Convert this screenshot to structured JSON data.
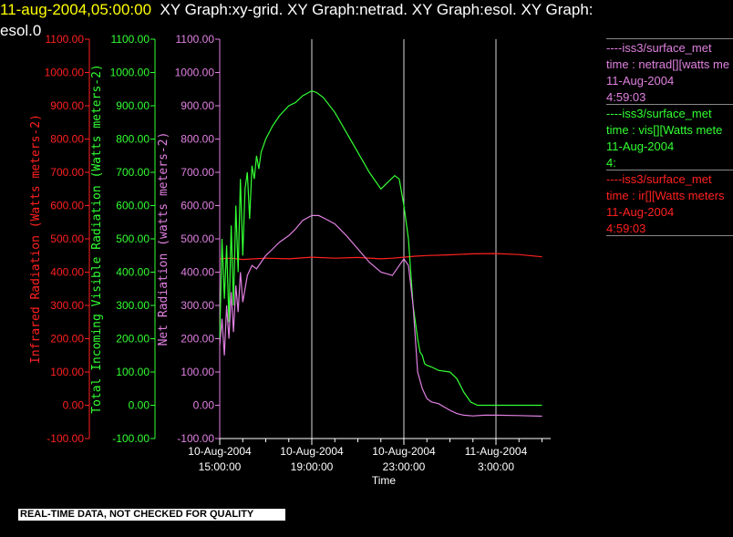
{
  "header": {
    "timestamp": "11-aug-2004,05:00:00",
    "line1_desc": "XY Graph:xy-grid.  XY Graph:netrad.  XY Graph:esol.  XY Graph:",
    "line2_desc": "esol.0"
  },
  "colors": {
    "infrared": "#ff2020",
    "visible": "#33ff33",
    "net": "#e080e0",
    "grid": "#ffffff",
    "axis": "#ffffff"
  },
  "legend": [
    {
      "name": "----iss3/surface_met",
      "label": "time : netrad[][watts me",
      "date": "11-Aug-2004",
      "time": "4:59:03",
      "color": "#e080e0"
    },
    {
      "name": "----iss3/surface_met",
      "label": "time : vis[][Watts mete",
      "date": "11-Aug-2004",
      "time": "4:",
      "color": "#33ff33"
    },
    {
      "name": "----iss3/surface_met",
      "label": "time : ir[][Watts meters",
      "date": "11-Aug-2004",
      "time": "4:59:03",
      "color": "#ff2020"
    }
  ],
  "footer_note": "REAL-TIME DATA, NOT CHECKED FOR QUALITY",
  "chart_data": {
    "type": "line",
    "xlabel": "Time",
    "x_ticks": [
      {
        "hours": 0,
        "line1": "10-Aug-2004",
        "line2": "15:00:00"
      },
      {
        "hours": 4,
        "line1": "10-Aug-2004",
        "line2": "19:00:00"
      },
      {
        "hours": 8,
        "line1": "10-Aug-2004",
        "line2": "23:00:00"
      },
      {
        "hours": 12,
        "line1": "11-Aug-2004",
        "line2": "3:00:00"
      }
    ],
    "xlim_hours": [
      0,
      14.1
    ],
    "grid": true,
    "axes": [
      {
        "id": "ir",
        "label": "Infrared Radiation (Watts meters-2)",
        "color": "#ff2020",
        "ylim": [
          -100,
          1100
        ],
        "ticks": [
          "-100.00",
          "0.00",
          "100.00",
          "200.00",
          "300.00",
          "400.00",
          "500.00",
          "600.00",
          "700.00",
          "800.00",
          "900.00",
          "1000.00",
          "1100.00"
        ]
      },
      {
        "id": "vis",
        "label": "Total Incoming Visible Radiation (Watts meters-2)",
        "color": "#33ff33",
        "ylim": [
          -100,
          1100
        ],
        "ticks": [
          "-100.00",
          "0.00",
          "100.00",
          "200.00",
          "300.00",
          "400.00",
          "500.00",
          "600.00",
          "700.00",
          "800.00",
          "900.00",
          "1000.00",
          "1100.00"
        ]
      },
      {
        "id": "net",
        "label": "Net Radiation (watts meters-2)",
        "color": "#e080e0",
        "ylim": [
          -100,
          1100
        ],
        "ticks": [
          "-100.00",
          "0.00",
          "100.00",
          "200.00",
          "300.00",
          "400.00",
          "500.00",
          "600.00",
          "700.00",
          "800.00",
          "900.00",
          "1000.00",
          "1100.00"
        ]
      }
    ],
    "series": [
      {
        "name": "ir",
        "color": "#ff2020",
        "x": [
          0,
          0.5,
          1,
          1.5,
          2,
          3,
          4,
          5,
          6,
          7,
          7.5,
          8,
          8.5,
          9,
          10,
          11,
          12,
          13,
          14
        ],
        "y": [
          440,
          442,
          438,
          440,
          442,
          440,
          445,
          442,
          444,
          440,
          442,
          445,
          448,
          450,
          452,
          455,
          456,
          453,
          446
        ]
      },
      {
        "name": "vis",
        "color": "#33ff33",
        "x": [
          0,
          0.1,
          0.2,
          0.3,
          0.4,
          0.5,
          0.6,
          0.7,
          0.8,
          0.9,
          1.0,
          1.1,
          1.2,
          1.3,
          1.4,
          1.5,
          1.6,
          1.7,
          1.8,
          2.0,
          2.3,
          2.6,
          3.0,
          3.3,
          3.6,
          4.0,
          4.2,
          4.5,
          5.0,
          5.5,
          6.0,
          6.5,
          7.0,
          7.3,
          7.6,
          7.8,
          8.0,
          8.2,
          8.4,
          8.6,
          8.7,
          8.8,
          8.9,
          9.0,
          9.2,
          9.5,
          10.0,
          10.3,
          10.6,
          10.9,
          11.2,
          11.5,
          12.0,
          13.0,
          14.0
        ],
        "y": [
          200,
          500,
          320,
          480,
          250,
          540,
          300,
          600,
          400,
          680,
          450,
          650,
          700,
          560,
          720,
          680,
          750,
          710,
          760,
          800,
          840,
          870,
          900,
          910,
          930,
          945,
          940,
          925,
          880,
          820,
          760,
          700,
          650,
          670,
          690,
          680,
          600,
          500,
          300,
          200,
          160,
          150,
          125,
          120,
          115,
          105,
          100,
          80,
          40,
          10,
          0,
          0,
          0,
          0,
          0
        ]
      },
      {
        "name": "net",
        "color": "#e080e0",
        "x": [
          0,
          0.1,
          0.2,
          0.3,
          0.4,
          0.5,
          0.6,
          0.7,
          0.8,
          0.9,
          1.0,
          1.2,
          1.4,
          1.6,
          1.8,
          2.0,
          2.3,
          2.6,
          3.0,
          3.3,
          3.6,
          4.0,
          4.3,
          4.6,
          5.0,
          5.5,
          6.0,
          6.5,
          7.0,
          7.5,
          7.8,
          8.0,
          8.2,
          8.4,
          8.6,
          8.8,
          9.0,
          9.2,
          9.5,
          10.0,
          10.3,
          10.6,
          11.0,
          11.5,
          12.0,
          13.0,
          14.0
        ],
        "y": [
          180,
          260,
          150,
          300,
          200,
          340,
          220,
          360,
          280,
          400,
          310,
          390,
          420,
          410,
          430,
          450,
          470,
          490,
          510,
          530,
          555,
          570,
          570,
          560,
          545,
          510,
          470,
          430,
          400,
          390,
          420,
          440,
          420,
          300,
          100,
          50,
          20,
          10,
          5,
          -15,
          -25,
          -30,
          -32,
          -30,
          -30,
          -31,
          -33
        ]
      }
    ]
  }
}
